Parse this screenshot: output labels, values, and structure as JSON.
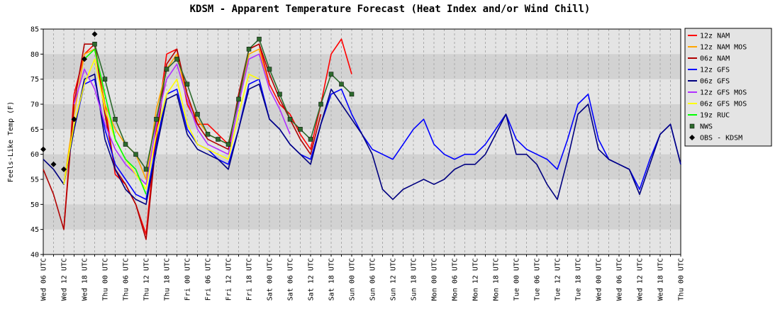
{
  "chart_data": {
    "type": "line",
    "title": "KDSM - Apparent Temperature Forecast (Heat Index and/or Wind Chill)",
    "y_label": "Feels-Like Temp (F)",
    "categories": [
      "Wed 06 UTC",
      null,
      "Wed 12 UTC",
      null,
      "Wed 18 UTC",
      null,
      "Thu 00 UTC",
      null,
      "Thu 06 UTC",
      null,
      "Thu 12 UTC",
      null,
      "Thu 18 UTC",
      null,
      "Fri 00 UTC",
      null,
      "Fri 06 UTC",
      null,
      "Fri 12 UTC",
      null,
      "Fri 18 UTC",
      null,
      "Sat 00 UTC",
      null,
      "Sat 06 UTC",
      null,
      "Sat 12 UTC",
      null,
      "Sat 18 UTC",
      null,
      "Sun 00 UTC",
      null,
      "Sun 06 UTC",
      null,
      "Sun 12 UTC",
      null,
      "Sun 18 UTC",
      null,
      "Mon 00 UTC",
      null,
      "Mon 06 UTC",
      null,
      "Mon 12 UTC",
      null,
      "Mon 18 UTC",
      null,
      "Tue 00 UTC",
      null,
      "Tue 06 UTC",
      null,
      "Tue 12 UTC",
      null,
      "Tue 18 UTC",
      null,
      "Wed 00 UTC",
      null,
      "Wed 06 UTC",
      null,
      "Wed 12 UTC",
      null,
      "Wed 18 UTC",
      null,
      "Thu 00 UTC"
    ],
    "ylim": [
      40,
      85
    ],
    "yticks": [
      40,
      45,
      50,
      55,
      60,
      65,
      70,
      75,
      80,
      85
    ],
    "grid": true,
    "legend": "outside-right",
    "series": [
      {
        "name": "12z NAM",
        "color": "#ff0000",
        "values": [
          null,
          null,
          45,
          72,
          80,
          82,
          70,
          56,
          54,
          50,
          44,
          65,
          80,
          81,
          70,
          66,
          66,
          64,
          62,
          71,
          81,
          82,
          74,
          70,
          68,
          64,
          61,
          70,
          80,
          83,
          76,
          null,
          null,
          null,
          null,
          null,
          null,
          null,
          null,
          null,
          null,
          null,
          null,
          null,
          null,
          null,
          null,
          null,
          null,
          null,
          null,
          null,
          null,
          null,
          null,
          null,
          null,
          null,
          null,
          null,
          null,
          null,
          null
        ]
      },
      {
        "name": "12z NAM MOS",
        "color": "#ffa500",
        "values": [
          null,
          null,
          54,
          68,
          80,
          81,
          70,
          65,
          62,
          60,
          55,
          69,
          77,
          80,
          71,
          67,
          64,
          63,
          62,
          71,
          80,
          81,
          73,
          null,
          null,
          null,
          null,
          null,
          null,
          null,
          null,
          null,
          null,
          null,
          null,
          null,
          null,
          null,
          null,
          null,
          null,
          null,
          null,
          null,
          null,
          null,
          null,
          null,
          null,
          null,
          null,
          null,
          null,
          null,
          null,
          null,
          null,
          null,
          null,
          null,
          null,
          null,
          null
        ]
      },
      {
        "name": "06z NAM",
        "color": "#b00000",
        "values": [
          57,
          52,
          45,
          70,
          82,
          82,
          68,
          57,
          54,
          50,
          43,
          63,
          78,
          81,
          72,
          66,
          63,
          62,
          61,
          72,
          81,
          82,
          76,
          71,
          67,
          63,
          60,
          68,
          null,
          null,
          null,
          null,
          null,
          null,
          null,
          null,
          null,
          null,
          null,
          null,
          null,
          null,
          null,
          null,
          null,
          null,
          null,
          null,
          null,
          null,
          null,
          null,
          null,
          null,
          null,
          null,
          null,
          null,
          null,
          null,
          null,
          null,
          null
        ]
      },
      {
        "name": "12z GFS",
        "color": "#0000ff",
        "values": [
          null,
          null,
          54,
          65,
          74,
          75,
          65,
          58,
          55,
          52,
          51,
          62,
          72,
          73,
          65,
          62,
          61,
          59,
          58,
          65,
          74,
          75,
          67,
          65,
          62,
          60,
          59,
          66,
          72,
          73,
          68,
          64,
          61,
          60,
          59,
          62,
          65,
          67,
          62,
          60,
          59,
          60,
          60,
          62,
          65,
          68,
          63,
          61,
          60,
          59,
          57,
          63,
          70,
          72,
          63,
          59,
          58,
          57,
          53,
          59,
          64,
          66,
          58
        ]
      },
      {
        "name": "06z GFS",
        "color": "#000080",
        "values": [
          59,
          57,
          54,
          65,
          75,
          76,
          63,
          57,
          53,
          51,
          50,
          61,
          71,
          72,
          64,
          61,
          60,
          59,
          57,
          65,
          73,
          74,
          67,
          65,
          62,
          60,
          58,
          66,
          73,
          70,
          67,
          64,
          60,
          53,
          51,
          53,
          54,
          55,
          54,
          55,
          57,
          58,
          58,
          60,
          64,
          68,
          60,
          60,
          58,
          54,
          51,
          59,
          68,
          70,
          61,
          59,
          58,
          57,
          52,
          58,
          64,
          66,
          58
        ]
      },
      {
        "name": "12z GFS MOS",
        "color": "#b030ff",
        "values": [
          null,
          null,
          null,
          70,
          77,
          73,
          66,
          61,
          58,
          56,
          54,
          66,
          75,
          78,
          71,
          65,
          62,
          61,
          60,
          70,
          79,
          80,
          73,
          69,
          64,
          null,
          null,
          null,
          null,
          null,
          null,
          null,
          null,
          null,
          null,
          null,
          null,
          null,
          null,
          null,
          null,
          null,
          null,
          null,
          null,
          null,
          null,
          null,
          null,
          null,
          null,
          null,
          null,
          null,
          null,
          null,
          null,
          null,
          null,
          null,
          null,
          null,
          null
        ]
      },
      {
        "name": "06z GFS MOS",
        "color": "#ffff00",
        "values": [
          null,
          null,
          54,
          66,
          74,
          79,
          69,
          63,
          59,
          56,
          53,
          64,
          72,
          75,
          66,
          62,
          61,
          60,
          59,
          68,
          76,
          75,
          null,
          null,
          null,
          null,
          null,
          null,
          null,
          null,
          null,
          null,
          null,
          null,
          null,
          null,
          null,
          null,
          null,
          null,
          null,
          null,
          null,
          null,
          null,
          null,
          null,
          null,
          null,
          null,
          null,
          null,
          null,
          null,
          null,
          null,
          null,
          null,
          null,
          null,
          null,
          null,
          null
        ]
      },
      {
        "name": "19z RUC",
        "color": "#00ff00",
        "values": [
          null,
          null,
          null,
          null,
          79,
          81,
          72,
          63,
          59,
          57,
          52,
          null,
          null,
          null,
          null,
          null,
          null,
          null,
          null,
          null,
          null,
          null,
          null,
          null,
          null,
          null,
          null,
          null,
          null,
          null,
          null,
          null,
          null,
          null,
          null,
          null,
          null,
          null,
          null,
          null,
          null,
          null,
          null,
          null,
          null,
          null,
          null,
          null,
          null,
          null,
          null,
          null,
          null,
          null,
          null,
          null,
          null,
          null,
          null,
          null,
          null,
          null,
          null
        ]
      },
      {
        "name": "NWS",
        "color": "#2d6a2d",
        "marker": "square",
        "values": [
          null,
          null,
          null,
          null,
          null,
          82,
          75,
          67,
          62,
          60,
          57,
          67,
          77,
          79,
          74,
          68,
          64,
          63,
          62,
          71,
          81,
          83,
          77,
          72,
          67,
          65,
          63,
          70,
          76,
          74,
          72,
          null,
          null,
          null,
          null,
          null,
          null,
          null,
          null,
          null,
          null,
          null,
          null,
          null,
          null,
          null,
          null,
          null,
          null,
          null,
          null,
          null,
          null,
          null,
          null,
          null,
          null,
          null,
          null,
          null,
          null,
          null,
          null
        ]
      },
      {
        "name": "OBS - KDSM",
        "color": "#000000",
        "marker": "diamond",
        "line": false,
        "values": [
          61,
          58,
          57,
          67,
          79,
          84,
          null,
          null,
          null,
          null,
          null,
          null,
          null,
          null,
          null,
          null,
          null,
          null,
          null,
          null,
          null,
          null,
          null,
          null,
          null,
          null,
          null,
          null,
          null,
          null,
          null,
          null,
          null,
          null,
          null,
          null,
          null,
          null,
          null,
          null,
          null,
          null,
          null,
          null,
          null,
          null,
          null,
          null,
          null,
          null,
          null,
          null,
          null,
          null,
          null,
          null,
          null,
          null,
          null,
          null,
          null,
          null,
          null
        ]
      }
    ]
  }
}
